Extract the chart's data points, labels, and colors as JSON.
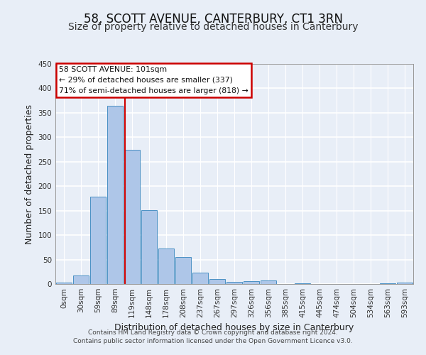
{
  "title": "58, SCOTT AVENUE, CANTERBURY, CT1 3RN",
  "subtitle": "Size of property relative to detached houses in Canterbury",
  "xlabel": "Distribution of detached houses by size in Canterbury",
  "ylabel": "Number of detached properties",
  "bar_labels": [
    "0sqm",
    "30sqm",
    "59sqm",
    "89sqm",
    "119sqm",
    "148sqm",
    "178sqm",
    "208sqm",
    "237sqm",
    "267sqm",
    "297sqm",
    "326sqm",
    "356sqm",
    "385sqm",
    "415sqm",
    "445sqm",
    "474sqm",
    "504sqm",
    "534sqm",
    "563sqm",
    "593sqm"
  ],
  "bar_values": [
    3,
    18,
    178,
    365,
    275,
    151,
    72,
    55,
    23,
    10,
    5,
    6,
    7,
    0,
    2,
    0,
    0,
    0,
    0,
    2,
    3
  ],
  "bar_color": "#aec6e8",
  "bar_edge_color": "#4a90c4",
  "background_color": "#e8eef7",
  "grid_color": "#ffffff",
  "vline_x": 3.6,
  "vline_color": "#cc0000",
  "annotation_box_text": "58 SCOTT AVENUE: 101sqm\n← 29% of detached houses are smaller (337)\n71% of semi-detached houses are larger (818) →",
  "annotation_box_color": "#cc0000",
  "annotation_box_fill": "#ffffff",
  "ylim": [
    0,
    450
  ],
  "yticks": [
    0,
    50,
    100,
    150,
    200,
    250,
    300,
    350,
    400,
    450
  ],
  "footer_line1": "Contains HM Land Registry data © Crown copyright and database right 2024.",
  "footer_line2": "Contains public sector information licensed under the Open Government Licence v3.0.",
  "title_fontsize": 12,
  "subtitle_fontsize": 10,
  "axis_label_fontsize": 9,
  "tick_fontsize": 7.5,
  "footer_fontsize": 6.5
}
